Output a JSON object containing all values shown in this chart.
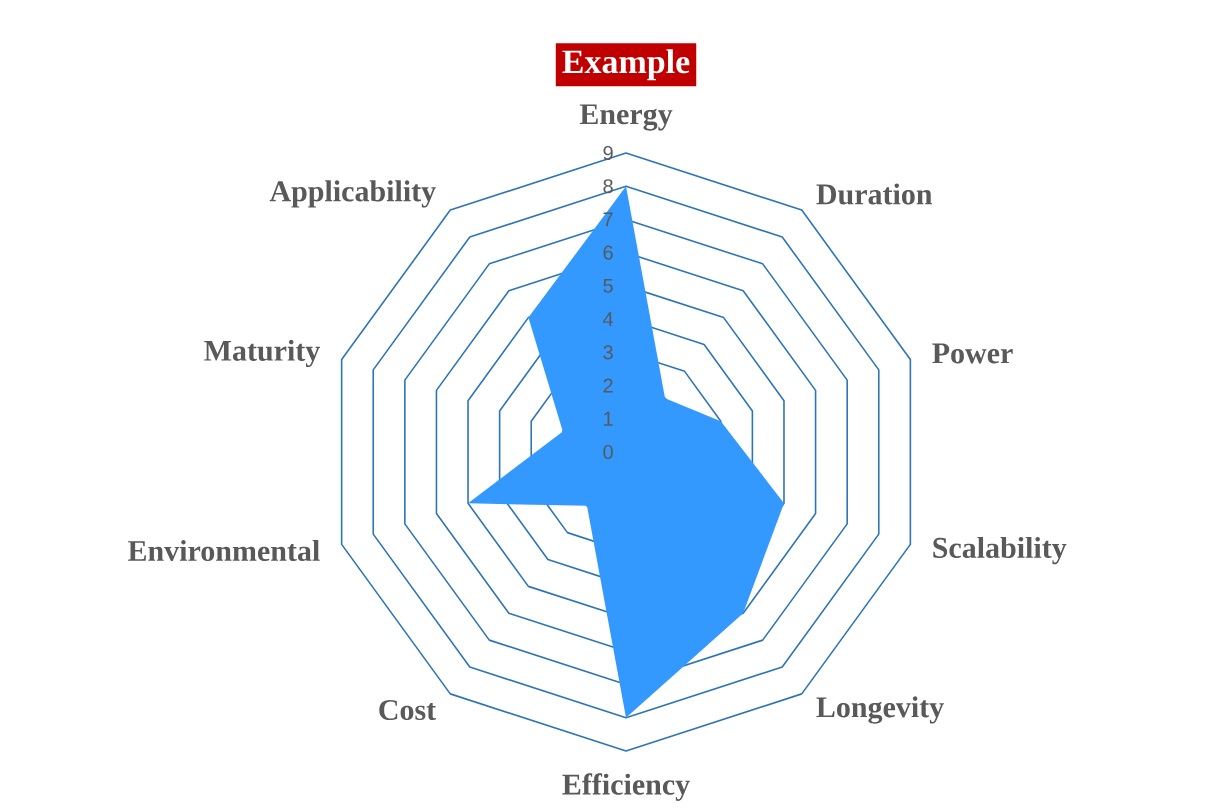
{
  "chart_data": {
    "type": "radar",
    "title": "Example",
    "categories": [
      "Energy",
      "Duration",
      "Power",
      "Scalability",
      "Longevity",
      "Efficiency",
      "Cost",
      "Environmental",
      "Maturity",
      "Applicability"
    ],
    "series": [
      {
        "color": "#3399ff",
        "values": [
          8,
          2,
          3,
          5,
          6,
          8,
          2,
          5,
          2,
          5
        ]
      }
    ],
    "ylim": [
      0,
      9
    ],
    "yticks": [
      0,
      1,
      2,
      3,
      4,
      5,
      6,
      7,
      8,
      9
    ],
    "grid": true
  }
}
